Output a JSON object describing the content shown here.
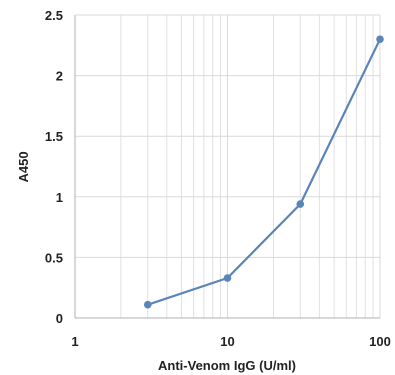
{
  "chart_data": {
    "type": "line",
    "x_scale": "log",
    "xlim": [
      1,
      100
    ],
    "ylim": [
      0,
      2.5
    ],
    "x_ticks": [
      1,
      10,
      100
    ],
    "x_tick_labels": [
      "1",
      "10",
      "100"
    ],
    "y_ticks": [
      0,
      0.5,
      1,
      1.5,
      2,
      2.5
    ],
    "y_tick_labels": [
      "0",
      "0.5",
      "1",
      "1.5",
      "2",
      "2.5"
    ],
    "xlabel": "Anti-Venom IgG (U/ml)",
    "ylabel": "A450",
    "grid": "major and minor vertical, major horizontal",
    "series": [
      {
        "x": [
          3,
          10,
          30,
          100
        ],
        "y": [
          0.11,
          0.33,
          0.94,
          2.3
        ]
      }
    ],
    "colors": {
      "series": "#5b84b8",
      "grid": "#d9d9d9",
      "axis": "#b0b0b0"
    }
  }
}
